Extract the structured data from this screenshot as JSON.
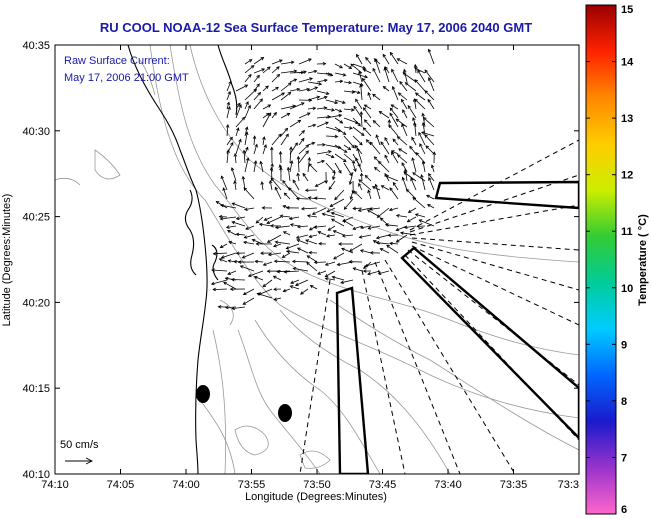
{
  "title": "RU COOL  NOAA-12  Sea Surface Temperature:  May 17, 2006 2040 GMT",
  "annotation": {
    "line1": "Raw Surface Current:",
    "line2": "May 17, 2006 21:00 GMT"
  },
  "axes": {
    "xlabel": "Longitude (Degrees:Minutes)",
    "ylabel": "Latitude (Degrees:Minutes)",
    "xticks": [
      "74:10",
      "74:05",
      "74:00",
      "73:55",
      "73:50",
      "73:45",
      "73:40",
      "73:35",
      "73:3"
    ],
    "yticks": [
      "40:35",
      "40:30",
      "40:25",
      "40:20",
      "40:15",
      "40:10"
    ]
  },
  "scale": {
    "label": "50 cm/s"
  },
  "colorbar": {
    "label": "Temperature ( °C)",
    "ticks": [
      "15",
      "14",
      "13",
      "12",
      "11",
      "10",
      "9",
      "8",
      "7",
      "6"
    ],
    "min": 6,
    "max": 15,
    "colors": [
      "#ff66cc",
      "#9933cc",
      "#1a1acc",
      "#0066ff",
      "#00ccff",
      "#00cc99",
      "#33cc33",
      "#ccee00",
      "#ffcc00",
      "#ff8800",
      "#ff2200",
      "#990000"
    ]
  },
  "map_features": {
    "coastline_color": "#000000",
    "contour_color": "#999999",
    "vector_color": "#000000"
  }
}
